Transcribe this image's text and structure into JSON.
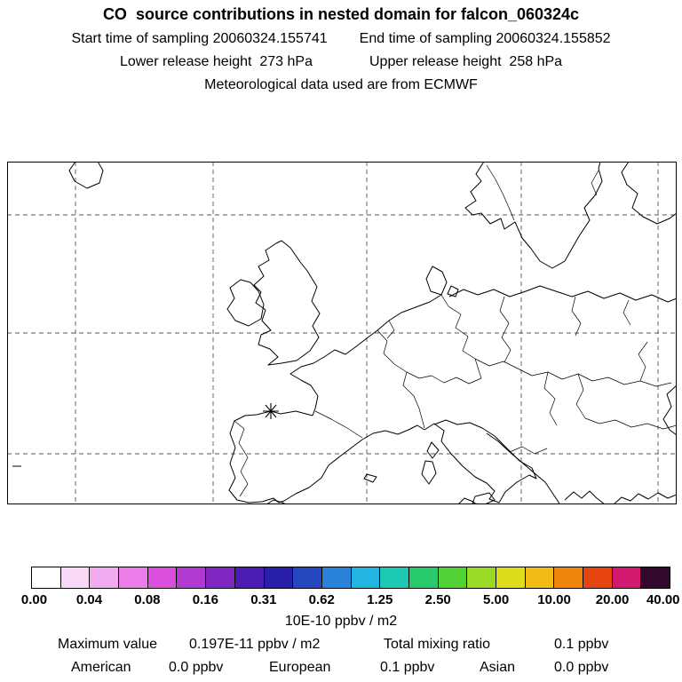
{
  "title": "CO  source contributions in nested domain for falcon_060324c",
  "header": {
    "start_time": "Start time of sampling 20060324.155741",
    "end_time": "End time of sampling 20060324.155852",
    "lower_release": "Lower release height  273 hPa",
    "upper_release": "Upper release height  258 hPa",
    "met_data": "Meteorological data used are from ECMWF"
  },
  "colorbar": {
    "units": "10E-10 ppbv / m2",
    "tick_labels": [
      "0.00",
      "0.04",
      "0.08",
      "0.16",
      "0.31",
      "0.62",
      "1.25",
      "2.50",
      "5.00",
      "10.00",
      "20.00",
      "40.00"
    ],
    "cell_colors": [
      "#ffffff",
      "#f8d8f6",
      "#f2abef",
      "#ec7ce8",
      "#da4ede",
      "#b238d2",
      "#8128c4",
      "#4d1cb2",
      "#2a1fa8",
      "#2348c0",
      "#2a82d8",
      "#22b5e2",
      "#1bc9b4",
      "#27c96a",
      "#52d134",
      "#9ada26",
      "#dedd1c",
      "#f2bd14",
      "#f0870c",
      "#e5440e",
      "#d3186f",
      "#34082e"
    ]
  },
  "stats": {
    "maximum_label": "Maximum value",
    "maximum_value": "0.197E-11 ppbv / m2",
    "total_label": "Total mixing ratio",
    "total_value": "0.1 ppbv",
    "regions": [
      {
        "label": "American",
        "value": "0.0 ppbv"
      },
      {
        "label": "European",
        "value": "0.1 ppbv"
      },
      {
        "label": "Asian",
        "value": "0.0 ppbv"
      }
    ]
  },
  "chart_data": {
    "type": "heatmap",
    "title": "CO source contributions in nested domain for falcon_060324c",
    "colorbar_tick_values": [
      0.0,
      0.04,
      0.08,
      0.16,
      0.31,
      0.62,
      1.25,
      2.5,
      5.0,
      10.0,
      20.0,
      40.0
    ],
    "colorbar_units": "10E-10 ppbv / m2",
    "maximum_value": "0.197E-11 ppbv / m2",
    "total_mixing_ratio_ppbv": 0.1,
    "contributions_ppbv": {
      "American": 0.0,
      "European": 0.1,
      "Asian": 0.0
    },
    "legend_position": "bottom",
    "notes": "Map of Europe with dashed lat/lon grid; release point marked with asterisk over NW Spain; no shaded concentration cells visible (field below lowest contour)."
  }
}
